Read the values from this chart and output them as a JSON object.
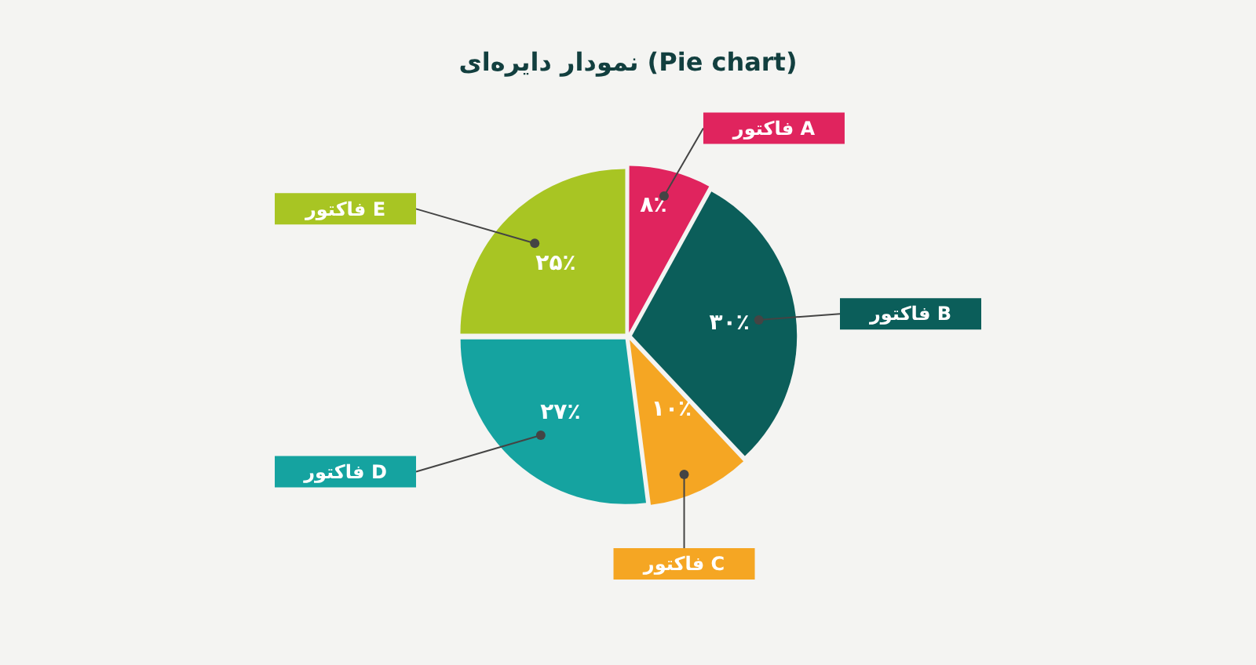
{
  "chart_data": {
    "type": "pie",
    "title": "نمودار دایره‌ای (Pie chart)",
    "categories": [
      "فاکتور A",
      "فاکتور B",
      "فاکتور C",
      "فاکتور D",
      "فاکتور E"
    ],
    "values": [
      8,
      30,
      10,
      27,
      25
    ],
    "value_labels": [
      "۸٪",
      "۳۰٪",
      "۱۰٪",
      "۲۷٪",
      "۲۵٪"
    ],
    "colors": [
      "#e0245e",
      "#0b5e5a",
      "#f5a623",
      "#15a3a0",
      "#a8c523"
    ]
  }
}
